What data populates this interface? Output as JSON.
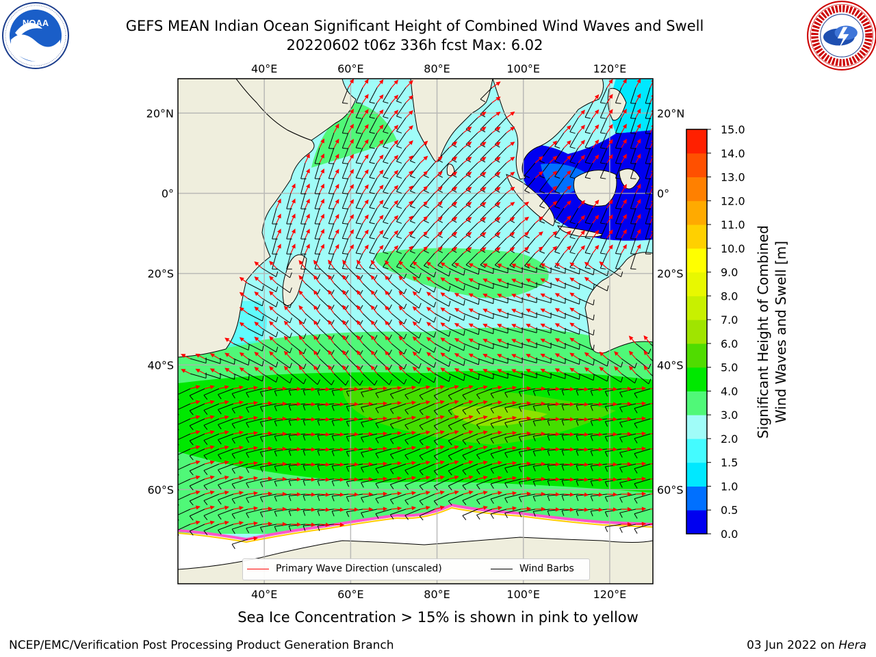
{
  "title": {
    "line1": "GEFS MEAN Indian Ocean Significant Height of Combined Wind Waves and Swell",
    "line2": "20220602 t06z 336h fcst   Max: 6.02"
  },
  "logos": {
    "left": "noaa-logo",
    "left_text": "NOAA",
    "right": "nws-logo"
  },
  "map": {
    "lon_range": [
      20,
      130
    ],
    "lat_range": [
      -70,
      28
    ],
    "lon_ticks": [
      "40°E",
      "60°E",
      "80°E",
      "100°E",
      "120°E"
    ],
    "lat_ticks": [
      "20°N",
      "0°",
      "20°S",
      "40°S",
      "60°S"
    ],
    "land_color": "#efeedd",
    "ice_color": "#ffffff",
    "grid": true,
    "arrow_color": "#ff0000",
    "barb_color": "#000000"
  },
  "legend": {
    "wave_label": "Primary Wave Direction (unscaled)",
    "wave_color": "#ff0000",
    "barb_label": "Wind Barbs",
    "barb_color": "#000000",
    "placement": "bottom-center"
  },
  "colorbar": {
    "label_line1": "Significant Height of Combined",
    "label_line2": "Wind Waves and Swell [m]",
    "ticks": [
      "15.0",
      "14.0",
      "13.0",
      "12.0",
      "11.0",
      "10.0",
      "9.0",
      "8.0",
      "7.0",
      "6.0",
      "5.0",
      "4.0",
      "3.0",
      "2.0",
      "1.5",
      "1.0",
      "0.5",
      "0.0"
    ],
    "colors": [
      "#0000f0",
      "#0070ff",
      "#00e8ff",
      "#44fbff",
      "#a0fcf8",
      "#50f878",
      "#00e800",
      "#50dc00",
      "#a0e400",
      "#c8f000",
      "#e8f800",
      "#ffff00",
      "#ffd000",
      "#ffaa00",
      "#ff8000",
      "#ff5000",
      "#ff2000"
    ]
  },
  "ice_note": "Sea Ice Concentration > 15% is shown in pink to yellow",
  "footer": {
    "left": "NCEP/EMC/Verification Post Processing Product Generation Branch",
    "right_prefix": "03 Jun 2022 on ",
    "right_italic": "Hera"
  }
}
